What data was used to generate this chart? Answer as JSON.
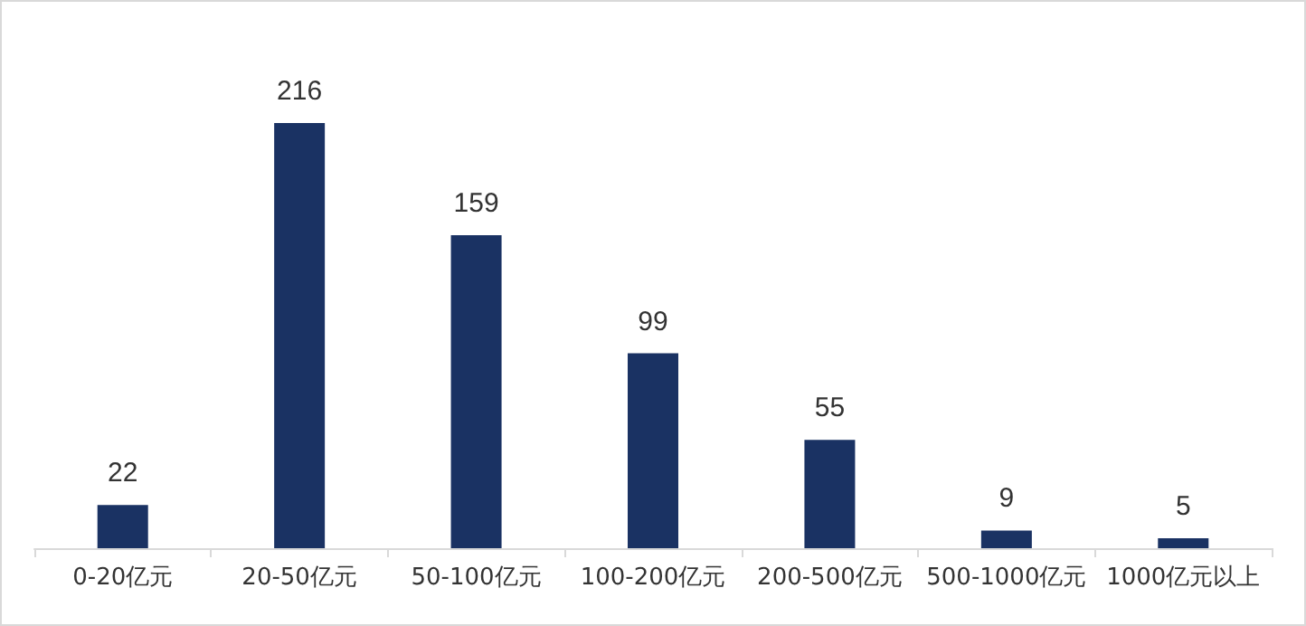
{
  "chart_data": {
    "type": "bar",
    "categories": [
      "0-20亿元",
      "20-50亿元",
      "50-100亿元",
      "100-200亿元",
      "200-500亿元",
      "500-1000亿元",
      "1000亿元以上"
    ],
    "values": [
      22,
      216,
      159,
      99,
      55,
      9,
      5
    ],
    "color": "#1a3263",
    "data_labels": true
  }
}
